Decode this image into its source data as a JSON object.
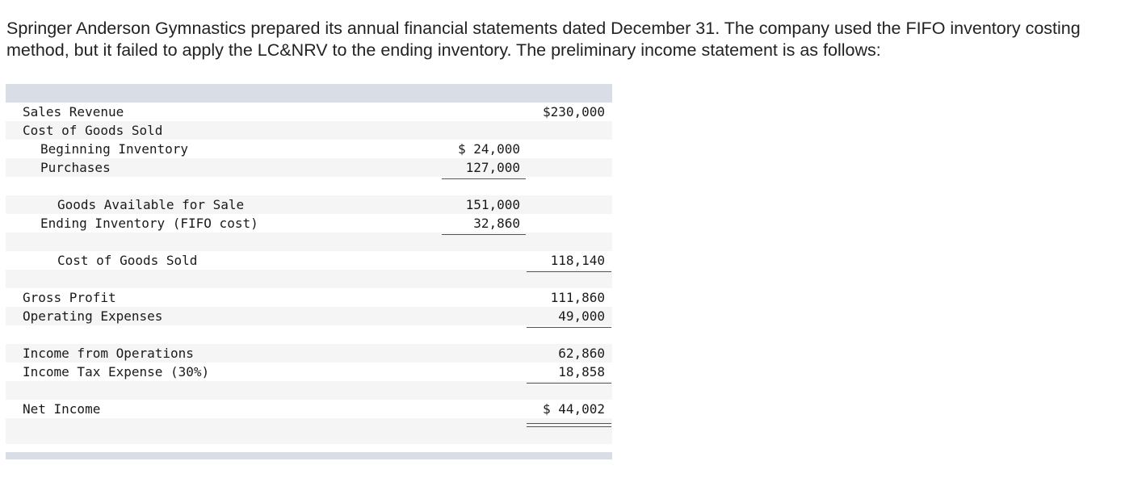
{
  "intro_text": "Springer Anderson Gymnastics prepared its annual financial statements dated December 31. The company used the FIFO inventory costing method, but it failed to apply the LC&NRV to the ending inventory. The preliminary income statement is as follows:",
  "statement": {
    "sales_revenue": {
      "label": "Sales Revenue",
      "amount": "$230,000"
    },
    "cogs_heading": {
      "label": "Cost of Goods Sold"
    },
    "beginning_inventory": {
      "label": "Beginning Inventory",
      "amount": "$ 24,000"
    },
    "purchases": {
      "label": "Purchases",
      "amount": "127,000"
    },
    "goods_available": {
      "label": "Goods Available for Sale",
      "amount": "151,000"
    },
    "ending_inventory": {
      "label": "Ending Inventory (FIFO cost)",
      "amount": "32,860"
    },
    "cogs_total": {
      "label": "Cost of Goods Sold",
      "amount": "118,140"
    },
    "gross_profit": {
      "label": "Gross Profit",
      "amount": "111,860"
    },
    "operating_expenses": {
      "label": "Operating Expenses",
      "amount": "49,000"
    },
    "income_from_operations": {
      "label": "Income from Operations",
      "amount": "62,860"
    },
    "income_tax_expense": {
      "label": "Income Tax Expense (30%)",
      "amount": "18,858"
    },
    "net_income": {
      "label": "Net Income",
      "amount": "$ 44,002"
    }
  }
}
